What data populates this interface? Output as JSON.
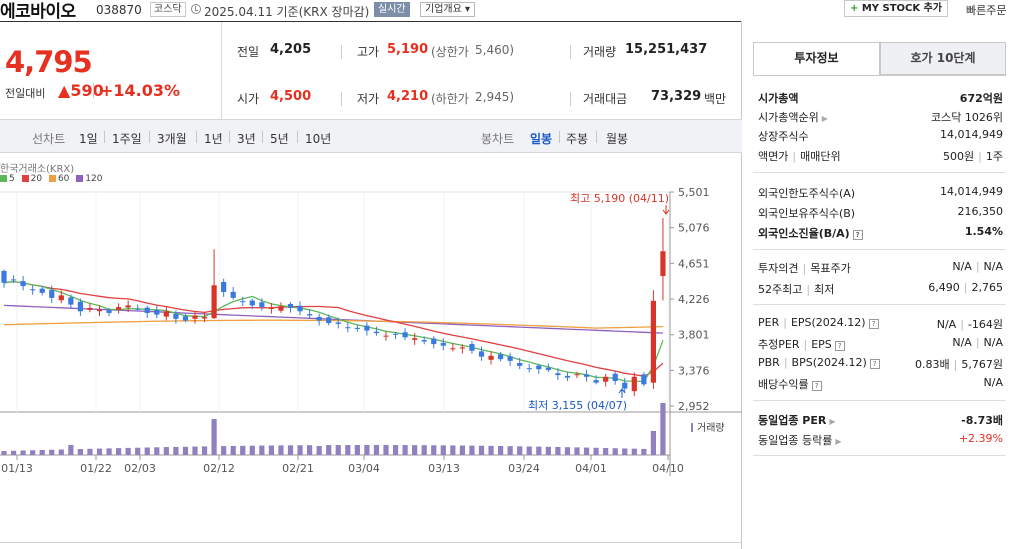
{
  "header": {
    "stock_name": "에코바이오",
    "stock_code": "038870",
    "market": "코스닥",
    "basis": "2025.04.11  기준(KRX 장마감)",
    "realtime_label": "실시간",
    "overview_label": "기업개요 ▾",
    "mystock_label": "MY STOCK 추가",
    "mystock_plus": "+",
    "quick_order": "빠른주문"
  },
  "price": {
    "current": "4,795",
    "change_label": "전일대비",
    "change_arrow": "▲",
    "change_value": "590",
    "change_percent": "+14.03%"
  },
  "quote": {
    "prev_close_label": "전일",
    "prev_close": "4,205",
    "high_label": "고가",
    "high": "5,190",
    "upper_limit_label": "(상한가",
    "upper_limit": "5,460)",
    "volume_label": "거래량",
    "volume": "15,251,437",
    "open_label": "시가",
    "open": "4,500",
    "low_label": "저가",
    "low": "4,210",
    "lower_limit_label": "(하한가",
    "lower_limit": "2,945)",
    "amount_label": "거래대금",
    "amount": "73,329",
    "amount_unit": "백만"
  },
  "toolbar": {
    "line_chart_label": "선차트",
    "line_ranges": [
      "1일",
      "1주일",
      "3개월",
      "1년",
      "3년",
      "5년",
      "10년"
    ],
    "candle_chart_label": "봉차트",
    "candle_ranges": [
      "일봉",
      "주봉",
      "월봉"
    ],
    "active_candle": "일봉"
  },
  "chart": {
    "source": "한국거래소(KRX)",
    "ma_legend": [
      {
        "label": "5",
        "color": "#5cb85c"
      },
      {
        "label": "20",
        "color": "#e04040"
      },
      {
        "label": "60",
        "color": "#f0a040"
      },
      {
        "label": "120",
        "color": "#9060c0"
      }
    ],
    "max_annotation": "최고 5,190 (04/11)",
    "min_annotation": "최저 3,155 (04/07)",
    "volume_label": "거래량",
    "colors": {
      "up": "#d8352a",
      "down": "#3a7ae0",
      "volume": "#9080c0"
    }
  },
  "chart_data": {
    "type": "candlestick",
    "y_ticks": [
      5501,
      5076,
      4651,
      4226,
      3801,
      3376,
      2952
    ],
    "ylim": [
      2952,
      5501
    ],
    "x_tick_labels": [
      "01/13",
      "01/22",
      "02/03",
      "02/12",
      "02/21",
      "03/04",
      "03/13",
      "03/24",
      "04/01",
      "04/10"
    ],
    "max": {
      "value": 5190,
      "date": "04/11"
    },
    "min": {
      "value": 3155,
      "date": "04/07"
    }
  },
  "info": {
    "tabs": [
      "투자정보",
      "호가 10단계"
    ],
    "rows1": [
      {
        "k": "시가총액",
        "v": "672억원"
      },
      {
        "k": "시가총액순위",
        "v": "코스닥 1026위"
      },
      {
        "k": "상장주식수",
        "v": "14,014,949"
      },
      {
        "k": "액면가",
        "k2": "매매단위",
        "v": "500원",
        "v2": "1주"
      }
    ],
    "rows2": [
      {
        "k": "외국인한도주식수(A)",
        "v": "14,014,949"
      },
      {
        "k": "외국인보유주식수(B)",
        "v": "216,350"
      },
      {
        "k": "외국인소진율(B/A)",
        "v": "1.54%"
      }
    ],
    "rows3": [
      {
        "k": "투자의견",
        "k2": "목표주가",
        "v": "N/A",
        "v2": "N/A"
      },
      {
        "k": "52주최고",
        "k2": "최저",
        "v": "6,490",
        "v2": "2,765"
      }
    ],
    "rows4": [
      {
        "k": "PER",
        "k2": "EPS(2024.12)",
        "v": "N/A",
        "v2": "-164원"
      },
      {
        "k": "추정PER",
        "k2": "EPS",
        "v": "N/A",
        "v2": "N/A"
      },
      {
        "k": "PBR",
        "k2": "BPS(2024.12)",
        "v": "0.83배",
        "v2": "5,767원"
      },
      {
        "k": "배당수익률",
        "v": "N/A"
      }
    ],
    "rows5": [
      {
        "k": "동일업종 PER",
        "v": "-8.73배"
      },
      {
        "k": "동일업종 등락률",
        "v": "+2.39%"
      }
    ]
  }
}
